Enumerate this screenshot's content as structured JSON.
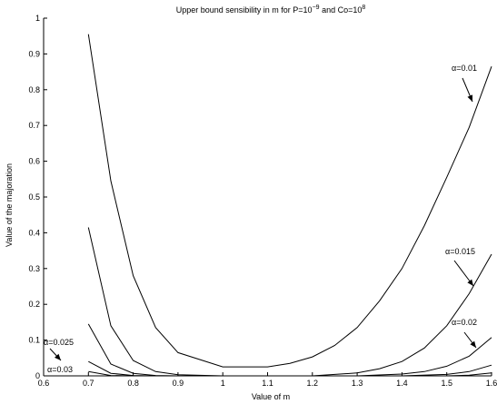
{
  "chart_data": {
    "type": "line",
    "title": {
      "prefix": "Upper bound sensibility in m for P=10",
      "p_exp": "−9",
      "middle": " and Co=10",
      "co_exp": "8"
    },
    "xlabel": "Value of m",
    "ylabel": "Value of the majoration",
    "xlim": [
      0.6,
      1.6
    ],
    "ylim": [
      0,
      1
    ],
    "xticks": [
      "0.6",
      "0.7",
      "0.8",
      "0.9",
      "1",
      "1.1",
      "1.2",
      "1.3",
      "1.4",
      "1.5",
      "1.6"
    ],
    "yticks": [
      "0",
      "0.1",
      "0.2",
      "0.3",
      "0.4",
      "0.5",
      "0.6",
      "0.7",
      "0.8",
      "0.9",
      "1"
    ],
    "grid": false,
    "series": [
      {
        "name": "α=0.01",
        "x": [
          0.7,
          0.75,
          0.8,
          0.85,
          0.9,
          1.0,
          1.1,
          1.15,
          1.2,
          1.25,
          1.3,
          1.35,
          1.4,
          1.45,
          1.5,
          1.55,
          1.6
        ],
        "y": [
          0.955,
          0.545,
          0.28,
          0.135,
          0.065,
          0.025,
          0.025,
          0.035,
          0.053,
          0.085,
          0.135,
          0.21,
          0.3,
          0.42,
          0.555,
          0.695,
          0.865
        ]
      },
      {
        "name": "α=0.015",
        "x": [
          0.7,
          0.75,
          0.8,
          0.85,
          0.9,
          1.0,
          1.1,
          1.2,
          1.3,
          1.35,
          1.4,
          1.45,
          1.5,
          1.55,
          1.6
        ],
        "y": [
          0.415,
          0.14,
          0.043,
          0.012,
          0.003,
          0.0,
          0.0,
          0.0,
          0.008,
          0.02,
          0.04,
          0.078,
          0.14,
          0.23,
          0.34
        ]
      },
      {
        "name": "α=0.02",
        "x": [
          0.7,
          0.75,
          0.8,
          0.85,
          0.9,
          1.0,
          1.1,
          1.2,
          1.3,
          1.4,
          1.45,
          1.5,
          1.55,
          1.6
        ],
        "y": [
          0.145,
          0.033,
          0.007,
          0.001,
          0.0,
          0.0,
          0.0,
          0.0,
          0.0,
          0.005,
          0.012,
          0.027,
          0.055,
          0.107
        ]
      },
      {
        "name": "α=0.025",
        "x": [
          0.7,
          0.75,
          0.8,
          0.85,
          0.9,
          1.0,
          1.4,
          1.5,
          1.55,
          1.6
        ],
        "y": [
          0.04,
          0.007,
          0.001,
          0.0,
          0.0,
          0.0,
          0.0,
          0.004,
          0.012,
          0.03
        ]
      },
      {
        "name": "α=0.03",
        "x": [
          0.7,
          0.75,
          0.8,
          1.0,
          1.5,
          1.55,
          1.6
        ],
        "y": [
          0.012,
          0.001,
          0.0,
          0.0,
          0.0,
          0.002,
          0.008
        ]
      }
    ],
    "annotations": [
      {
        "text": "α=0.01",
        "series": "α=0.01"
      },
      {
        "text": "α=0.015",
        "series": "α=0.015"
      },
      {
        "text": "α=0.02",
        "series": "α=0.02"
      },
      {
        "text": "α=0.025",
        "series": "α=0.025"
      },
      {
        "text": "α=0.03",
        "series": "α=0.03"
      }
    ]
  }
}
